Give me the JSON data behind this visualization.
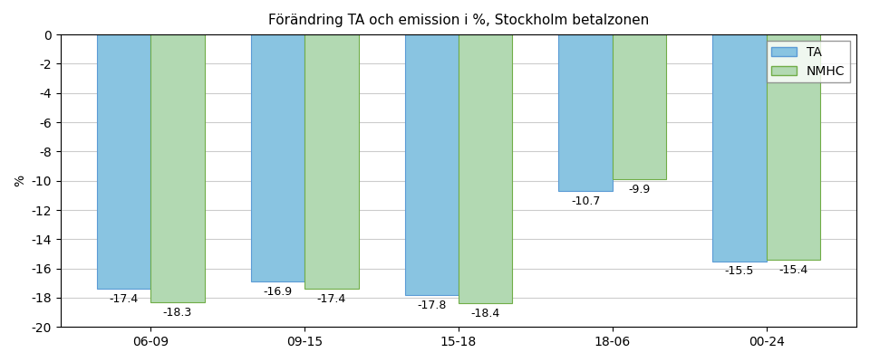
{
  "title": "Förändring TA och emission i %, Stockholm betalzonen",
  "legend_labels": [
    "TA",
    "NMHC"
  ],
  "legend_colors": [
    "#89C4E1",
    "#B2D9B2"
  ],
  "categories": [
    "06-09",
    "09-15",
    "15-18",
    "18-06",
    "00-24"
  ],
  "ta_values": [
    -17.4,
    -16.9,
    -17.8,
    -10.7,
    -15.5
  ],
  "nmhc_values": [
    -18.3,
    -17.4,
    -18.4,
    -9.9,
    -15.4
  ],
  "ylabel": "%",
  "ylim": [
    -20,
    0
  ],
  "yticks": [
    0,
    -2,
    -4,
    -6,
    -8,
    -10,
    -12,
    -14,
    -16,
    -18,
    -20
  ],
  "bar_width": 0.35,
  "ta_color": "#89C4E1",
  "nmhc_color": "#B2D9B2",
  "ta_edge_color": "#5B9BD5",
  "nmhc_edge_color": "#70AD47",
  "background_color": "#FFFFFF",
  "grid_color": "#CCCCCC",
  "title_fontsize": 11,
  "tick_fontsize": 10,
  "label_fontsize": 9
}
